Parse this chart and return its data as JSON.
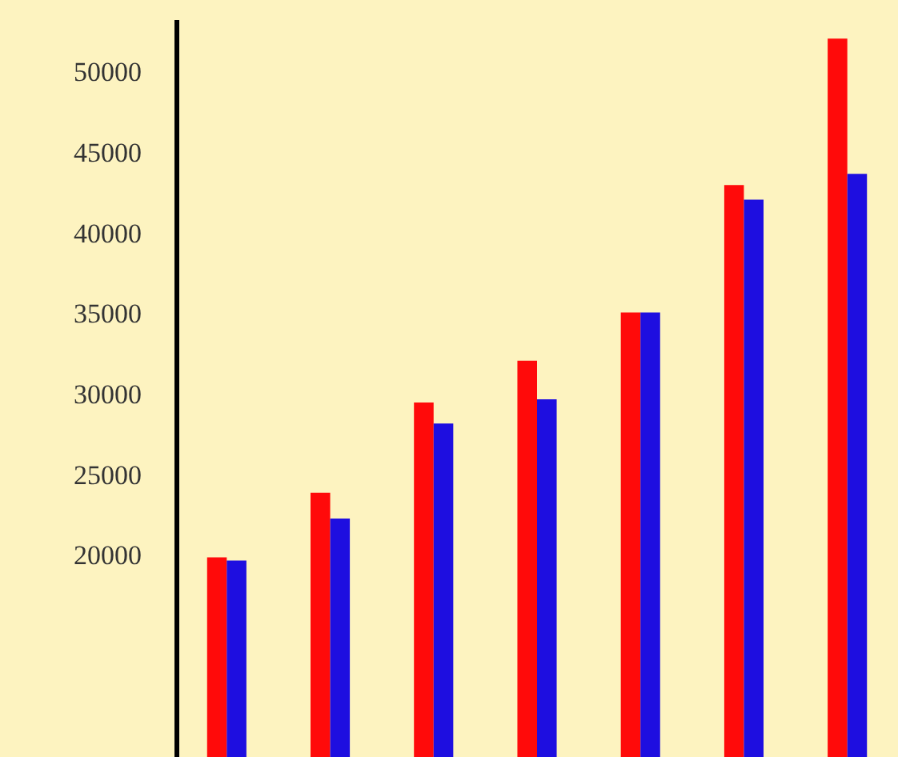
{
  "chart_data": {
    "type": "bar",
    "categories": [
      null,
      null,
      null,
      null,
      null,
      null,
      null
    ],
    "series": [
      {
        "color": "#ff0a0a",
        "values": [
          19900,
          23900,
          29500,
          32100,
          35100,
          43000,
          52100
        ]
      },
      {
        "color": "#1e0ee0",
        "values": [
          19700,
          22300,
          28200,
          29700,
          35100,
          42100,
          43700
        ]
      }
    ],
    "ylim": [
      7500,
      53300
    ],
    "yticks": [
      20000,
      25000,
      30000,
      35000,
      40000,
      45000,
      50000
    ],
    "grid": false,
    "tick_labels": "y"
  }
}
